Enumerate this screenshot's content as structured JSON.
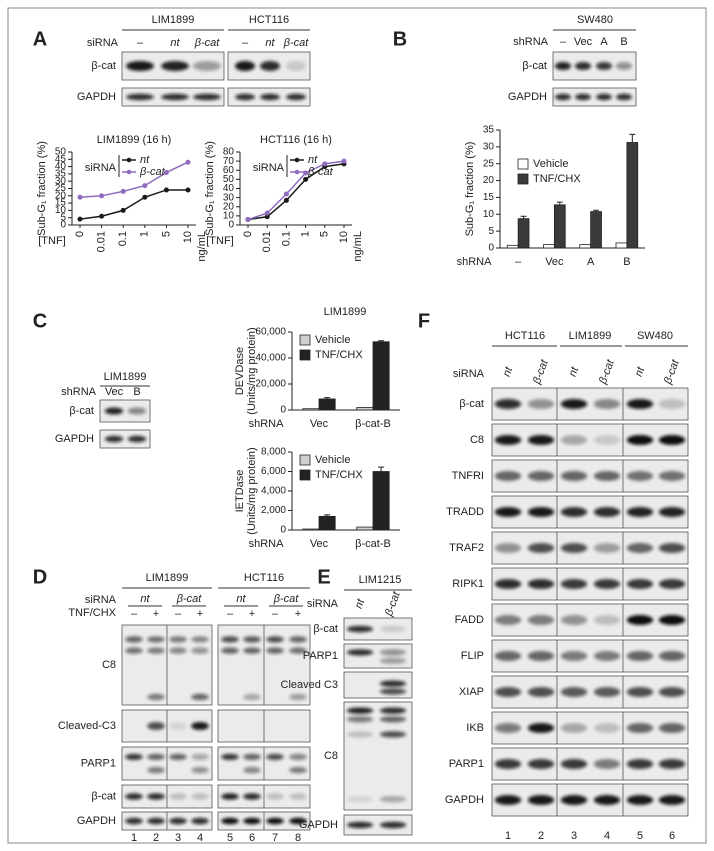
{
  "panels": {
    "A": {
      "label": "A",
      "cell_lines": [
        "LIM1899",
        "HCT116"
      ],
      "row_title": "siRNA",
      "lanes": [
        "–",
        "nt",
        "β-cat",
        "–",
        "nt",
        "β-cat"
      ],
      "rows": [
        "β-cat",
        "GAPDH"
      ]
    },
    "B": {
      "label": "B",
      "cell_line": "SW480",
      "row_title": "shRNA",
      "lanes": [
        "–",
        "Vec",
        "A",
        "B"
      ],
      "rows": [
        "β-cat",
        "GAPDH"
      ]
    },
    "C": {
      "label": "C",
      "title": "LIM1899",
      "cell_line": "LIM1899",
      "row_title": "shRNA",
      "lanes": [
        "Vec",
        "B"
      ],
      "rows": [
        "β-cat",
        "GAPDH"
      ]
    },
    "D": {
      "label": "D",
      "cell_lines": [
        "LIM1899",
        "HCT116"
      ],
      "siRNA_title": "siRNA",
      "siRNA_groups": [
        "nt",
        "β-cat",
        "nt",
        "β-cat"
      ],
      "treatment_title": "TNF/CHX",
      "treatment_lanes": [
        "–",
        "+",
        "–",
        "+",
        "–",
        "+",
        "–",
        "+"
      ],
      "rows": [
        "C8",
        "Cleaved-C3",
        "PARP1",
        "β-cat",
        "GAPDH"
      ],
      "lane_numbers": [
        "1",
        "2",
        "3",
        "4",
        "5",
        "6",
        "7",
        "8"
      ]
    },
    "E": {
      "label": "E",
      "cell_line": "LIM1215",
      "row_title": "siRNA",
      "lanes": [
        "nt",
        "β-cat"
      ],
      "rows": [
        "β-cat",
        "PARP1",
        "Cleaved C3",
        "C8",
        "GAPDH"
      ]
    },
    "F": {
      "label": "F",
      "cell_lines": [
        "HCT116",
        "LIM1899",
        "SW480"
      ],
      "row_title": "siRNA",
      "lanes": [
        "nt",
        "β-cat",
        "nt",
        "β-cat",
        "nt",
        "β-cat"
      ],
      "rows": [
        "β-cat",
        "C8",
        "TNFRI",
        "TRADD",
        "TRAF2",
        "RIPK1",
        "FADD",
        "FLIP",
        "XIAP",
        "IKB",
        "PARP1",
        "GAPDH"
      ],
      "lane_numbers": [
        "1",
        "2",
        "3",
        "4",
        "5",
        "6"
      ]
    }
  },
  "chart_data": [
    {
      "type": "line",
      "title": "LIM1899 (16 h)",
      "categories": [
        "0",
        "0.01",
        "0.1",
        "1",
        "5",
        "10"
      ],
      "x_label": "[TNF]",
      "x_unit": "ng/mL",
      "y_label": "Sub-G₁ fraction (%)",
      "ylim": [
        0,
        50
      ],
      "yticks": [
        0,
        5,
        10,
        15,
        20,
        25,
        30,
        35,
        40,
        45,
        50
      ],
      "legend_title": "siRNA",
      "series": [
        {
          "name": "nt",
          "color": "#1a1a1a",
          "values": [
            4,
            6,
            10,
            19,
            24,
            24
          ]
        },
        {
          "name": "β-cat",
          "color": "#8e6bbf",
          "values": [
            19,
            20,
            23,
            27,
            36,
            43
          ]
        }
      ]
    },
    {
      "type": "line",
      "title": "HCT116 (16 h)",
      "categories": [
        "0",
        "0.01",
        "0.1",
        "1",
        "5",
        "10"
      ],
      "x_label": "[TNF]",
      "x_unit": "ng/mL",
      "y_label": "Sub-G₁ fraction (%)",
      "ylim": [
        0,
        80
      ],
      "yticks": [
        0,
        10,
        20,
        30,
        40,
        50,
        60,
        70,
        80
      ],
      "legend_title": "siRNA",
      "series": [
        {
          "name": "nt",
          "color": "#1a1a1a",
          "values": [
            6,
            9,
            27,
            50,
            64,
            67
          ]
        },
        {
          "name": "β-cat",
          "color": "#8e6bbf",
          "values": [
            6,
            13,
            34,
            57,
            67,
            70
          ]
        }
      ]
    },
    {
      "type": "bar",
      "categories": [
        "–",
        "Vec",
        "A",
        "B"
      ],
      "x_label": "shRNA",
      "y_label": "Sub-G₁ fraction (%)",
      "ylim": [
        0,
        35
      ],
      "yticks": [
        0,
        5,
        10,
        15,
        20,
        25,
        30,
        35
      ],
      "series": [
        {
          "name": "Vehicle",
          "color": "#ffffff",
          "values": [
            0.8,
            1,
            1,
            1.5
          ]
        },
        {
          "name": "TNF/CHX",
          "color": "#3a3a3a",
          "values": [
            8.7,
            12.8,
            10.8,
            31.3
          ],
          "errors": [
            0.7,
            0.8,
            0.4,
            2.4
          ]
        }
      ]
    },
    {
      "type": "bar",
      "categories": [
        "Vec",
        "β-cat-B"
      ],
      "x_label": "shRNA",
      "y_label": [
        "DEVDase",
        "(Units/mg protein)"
      ],
      "ylim": [
        0,
        60000
      ],
      "yticks": [
        0,
        {
          "value": 20000,
          "label": "20,000"
        },
        {
          "value": 40000,
          "label": "40,000"
        },
        {
          "value": 60000,
          "label": "60,000"
        }
      ],
      "series": [
        {
          "name": "Vehicle",
          "color": "#d0d0d0",
          "values": [
            1000,
            2000
          ]
        },
        {
          "name": "TNF/CHX",
          "color": "#222222",
          "values": [
            8500,
            52500
          ],
          "errors": [
            1000,
            800
          ]
        }
      ]
    },
    {
      "type": "bar",
      "categories": [
        "Vec",
        "β-cat-B"
      ],
      "x_label": "shRNA",
      "y_label": [
        "IETDase",
        "(Units/mg protein)"
      ],
      "ylim": [
        0,
        8000
      ],
      "yticks": [
        0,
        {
          "value": 2000,
          "label": "2,000"
        },
        {
          "value": 4000,
          "label": "4,000"
        },
        {
          "value": 6000,
          "label": "6,000"
        },
        {
          "value": 8000,
          "label": "8,000"
        }
      ],
      "series": [
        {
          "name": "Vehicle",
          "color": "#d0d0d0",
          "values": [
            100,
            300
          ]
        },
        {
          "name": "TNF/CHX",
          "color": "#222222",
          "values": [
            1400,
            6000
          ],
          "errors": [
            150,
            450
          ]
        }
      ]
    }
  ]
}
